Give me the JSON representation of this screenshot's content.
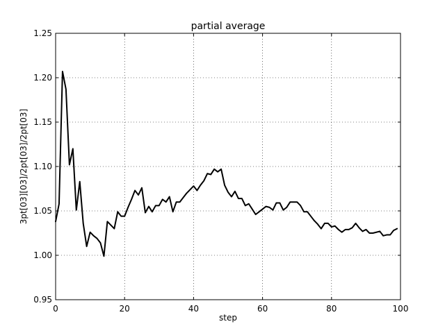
{
  "chart_data": {
    "type": "line",
    "title": "partial average",
    "xlabel": "step",
    "ylabel": "3pt[03][03]/2pt[03]/2pt[03]",
    "xlim": [
      0,
      100
    ],
    "ylim": [
      0.95,
      1.25
    ],
    "xticks": [
      0,
      20,
      40,
      60,
      80,
      100
    ],
    "yticks": [
      0.95,
      1.0,
      1.05,
      1.1,
      1.15,
      1.2,
      1.25
    ],
    "xtick_labels": [
      "0",
      "20",
      "40",
      "60",
      "80",
      "100"
    ],
    "ytick_labels": [
      "0.95",
      "1.00",
      "1.05",
      "1.10",
      "1.15",
      "1.20",
      "1.25"
    ],
    "grid": true,
    "line_color": "#000000",
    "series": [
      {
        "x": [
          0,
          1,
          2,
          3,
          4,
          5,
          6,
          7,
          8,
          9,
          10,
          11,
          12,
          13,
          14,
          15,
          16,
          17,
          18,
          19,
          20,
          21,
          22,
          23,
          24,
          25,
          26,
          27,
          28,
          29,
          30,
          31,
          32,
          33,
          34,
          35,
          36,
          37,
          38,
          39,
          40,
          41,
          42,
          43,
          44,
          45,
          46,
          47,
          48,
          49,
          50,
          51,
          52,
          53,
          54,
          55,
          56,
          57,
          58,
          59,
          60,
          61,
          62,
          63,
          64,
          65,
          66,
          67,
          68,
          69,
          70,
          71,
          72,
          73,
          74,
          75,
          76,
          77,
          78,
          79,
          80,
          81,
          82,
          83,
          84,
          85,
          86,
          87,
          88,
          89,
          90,
          91,
          92,
          93,
          94,
          95,
          96,
          97,
          98,
          99
        ],
        "values": [
          1.038,
          1.058,
          1.207,
          1.187,
          1.102,
          1.12,
          1.051,
          1.083,
          1.036,
          1.01,
          1.026,
          1.022,
          1.019,
          1.014,
          0.999,
          1.038,
          1.034,
          1.03,
          1.049,
          1.044,
          1.044,
          1.054,
          1.063,
          1.073,
          1.068,
          1.076,
          1.048,
          1.055,
          1.049,
          1.056,
          1.056,
          1.063,
          1.06,
          1.066,
          1.049,
          1.06,
          1.06,
          1.065,
          1.07,
          1.074,
          1.078,
          1.073,
          1.079,
          1.084,
          1.092,
          1.091,
          1.097,
          1.094,
          1.097,
          1.079,
          1.071,
          1.066,
          1.072,
          1.064,
          1.064,
          1.056,
          1.058,
          1.052,
          1.046,
          1.049,
          1.052,
          1.055,
          1.054,
          1.051,
          1.059,
          1.059,
          1.051,
          1.054,
          1.06,
          1.06,
          1.06,
          1.056,
          1.049,
          1.049,
          1.044,
          1.039,
          1.035,
          1.03,
          1.036,
          1.036,
          1.032,
          1.033,
          1.029,
          1.026,
          1.029,
          1.029,
          1.031,
          1.036,
          1.031,
          1.027,
          1.029,
          1.025,
          1.025,
          1.026,
          1.027,
          1.022,
          1.023,
          1.023,
          1.028,
          1.03
        ]
      }
    ]
  }
}
